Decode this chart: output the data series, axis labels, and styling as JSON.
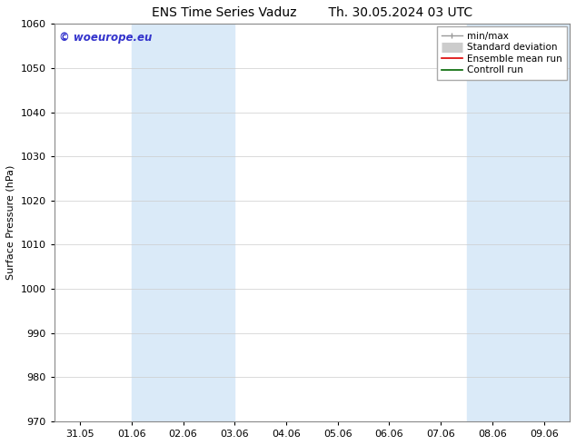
{
  "title_left": "ENS Time Series Vaduz",
  "title_right": "Th. 30.05.2024 03 UTC",
  "ylabel": "Surface Pressure (hPa)",
  "ylim": [
    970,
    1060
  ],
  "yticks": [
    970,
    980,
    990,
    1000,
    1010,
    1020,
    1030,
    1040,
    1050,
    1060
  ],
  "xtick_labels": [
    "31.05",
    "01.06",
    "02.06",
    "03.06",
    "04.06",
    "05.06",
    "06.06",
    "07.06",
    "08.06",
    "09.06"
  ],
  "xtick_positions": [
    0,
    1,
    2,
    3,
    4,
    5,
    6,
    7,
    8,
    9
  ],
  "xlim": [
    -0.5,
    9.5
  ],
  "shaded_bands": [
    {
      "x_start": 1.0,
      "x_end": 3.0
    },
    {
      "x_start": 7.5,
      "x_end": 9.5
    }
  ],
  "band_color": "#daeaf8",
  "watermark_text": "© woeurope.eu",
  "watermark_color": "#3333cc",
  "bg_color": "#ffffff",
  "grid_color": "#cccccc",
  "title_fontsize": 10,
  "label_fontsize": 8,
  "tick_fontsize": 8,
  "legend_fontsize": 7.5
}
